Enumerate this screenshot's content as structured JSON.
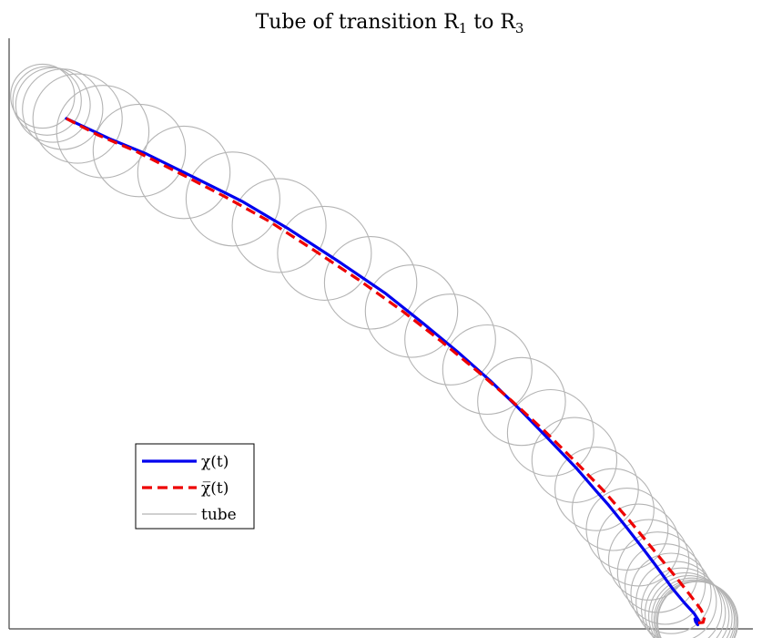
{
  "chart_data": {
    "type": "line",
    "title": "Tube of transition R₁ to R₃",
    "title_parts": {
      "base": "Tube of transition R",
      "sub1": "1",
      "mid": " to R",
      "sub2": "3"
    },
    "xlabel": "",
    "ylabel": "",
    "xlim": [
      0,
      100
    ],
    "ylim": [
      0,
      100
    ],
    "grid": false,
    "legend_position": "left",
    "series": [
      {
        "name": "χ(t)",
        "style": "solid",
        "color": "#0000ee",
        "x": [
          7.7,
          13.5,
          18.5,
          25.1,
          31.3,
          37.6,
          44.3,
          50.5,
          55.7,
          60.3,
          64.7,
          68.4,
          72.1,
          76.2,
          78.9,
          80.5,
          83.0,
          85.1,
          86.9,
          89.2,
          90.8,
          92.1,
          92.7,
          92.6,
          92.3,
          92.2
        ],
        "y": [
          86.4,
          83.0,
          80.4,
          76.3,
          72.4,
          67.7,
          62.2,
          56.9,
          51.7,
          46.9,
          42.0,
          37.5,
          32.7,
          27.3,
          23.4,
          21.1,
          17.2,
          13.8,
          10.8,
          6.8,
          4.4,
          2.6,
          1.4,
          0.7,
          1.2,
          1.7
        ]
      },
      {
        "name": "χ̅(t)",
        "style": "dashed",
        "color": "#ee0000",
        "x": [
          7.7,
          12.0,
          17.0,
          23.0,
          29.0,
          35.0,
          41.0,
          47.0,
          53.0,
          58.0,
          63.0,
          67.5,
          72.0,
          76.0,
          80.0,
          83.5,
          86.5,
          89.5,
          91.5,
          93.0,
          93.5,
          93.3,
          92.6
        ],
        "y": [
          86.4,
          83.6,
          80.9,
          77.1,
          73.2,
          69.0,
          64.1,
          59.1,
          53.7,
          48.8,
          43.6,
          38.7,
          33.5,
          28.5,
          23.3,
          18.2,
          13.6,
          9.0,
          5.8,
          3.3,
          2.0,
          1.1,
          1.0
        ]
      }
    ],
    "tube": {
      "name": "tube",
      "color": "#b4b4b4",
      "circles": [
        {
          "x": 4.5,
          "y": 90.2,
          "r": 4.3
        },
        {
          "x": 5.1,
          "y": 89.4,
          "r": 4.6
        },
        {
          "x": 5.9,
          "y": 88.7,
          "r": 5.0
        },
        {
          "x": 7.2,
          "y": 88.0,
          "r": 5.4
        },
        {
          "x": 9.2,
          "y": 86.4,
          "r": 6.0
        },
        {
          "x": 12.6,
          "y": 84.2,
          "r": 6.2
        },
        {
          "x": 17.5,
          "y": 81.0,
          "r": 6.2
        },
        {
          "x": 23.5,
          "y": 77.3,
          "r": 6.2
        },
        {
          "x": 30.1,
          "y": 72.8,
          "r": 6.3
        },
        {
          "x": 36.3,
          "y": 68.3,
          "r": 6.3
        },
        {
          "x": 42.4,
          "y": 63.6,
          "r": 6.3
        },
        {
          "x": 48.6,
          "y": 58.6,
          "r": 6.2
        },
        {
          "x": 54.1,
          "y": 53.8,
          "r": 6.2
        },
        {
          "x": 59.3,
          "y": 49.0,
          "r": 6.1
        },
        {
          "x": 64.3,
          "y": 43.9,
          "r": 6.0
        },
        {
          "x": 68.9,
          "y": 38.5,
          "r": 5.9
        },
        {
          "x": 72.8,
          "y": 33.2,
          "r": 5.8
        },
        {
          "x": 76.0,
          "y": 28.6,
          "r": 5.7
        },
        {
          "x": 79.0,
          "y": 23.7,
          "r": 5.6
        },
        {
          "x": 81.2,
          "y": 20.2,
          "r": 5.5
        },
        {
          "x": 83.1,
          "y": 16.9,
          "r": 5.5
        },
        {
          "x": 84.6,
          "y": 14.2,
          "r": 5.5
        },
        {
          "x": 86.0,
          "y": 11.7,
          "r": 5.4
        },
        {
          "x": 87.2,
          "y": 9.6,
          "r": 5.4
        },
        {
          "x": 88.2,
          "y": 7.6,
          "r": 5.4
        },
        {
          "x": 89.0,
          "y": 6.0,
          "r": 5.4
        },
        {
          "x": 89.7,
          "y": 4.6,
          "r": 5.4
        },
        {
          "x": 90.4,
          "y": 3.5,
          "r": 5.4
        },
        {
          "x": 90.9,
          "y": 2.7,
          "r": 5.4
        },
        {
          "x": 91.4,
          "y": 2.2,
          "r": 5.4
        },
        {
          "x": 91.8,
          "y": 1.8,
          "r": 5.4
        },
        {
          "x": 92.1,
          "y": 1.5,
          "r": 5.4
        },
        {
          "x": 92.3,
          "y": 1.3,
          "r": 5.4
        },
        {
          "x": 92.5,
          "y": 1.2,
          "r": 5.4
        },
        {
          "x": 92.6,
          "y": 1.2,
          "r": 5.4
        }
      ]
    },
    "legend": [
      {
        "label": "χ(t)",
        "style": "solid",
        "color": "#0000ee"
      },
      {
        "label": "χ̅(t)",
        "style": "dashed",
        "color": "#ee0000"
      },
      {
        "label": "tube",
        "style": "thin",
        "color": "#b4b4b4"
      }
    ]
  }
}
